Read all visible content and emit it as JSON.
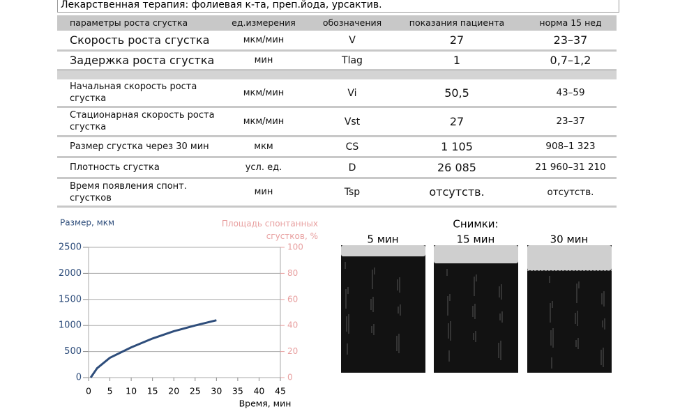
{
  "header": {
    "text": "Лекарственная терапия: фолиевая к-та, преп.йода, урсактив."
  },
  "table": {
    "columns": [
      "параметры роста сгустка",
      "ед.измерения",
      "обозначения",
      "показания пациента",
      "норма 15 нед"
    ],
    "rows": [
      [
        "Скорость роста сгустка",
        "мкм/мин",
        "V",
        "27",
        "23–37"
      ],
      [
        "Задержка роста сгустка",
        "мин",
        "Tlag",
        "1",
        "0,7–1,2"
      ],
      [
        "Начальная скорость роста сгустка",
        "мкм/мин",
        "Vi",
        "50,5",
        "43–59"
      ],
      [
        "Стационарная скорость роста сгустка",
        "мкм/мин",
        "Vst",
        "27",
        "23–37"
      ],
      [
        "Размер сгустка через 30 мин",
        "мкм",
        "CS",
        "1 105",
        "908–1 323"
      ],
      [
        "Плотность сгустка",
        "усл. ед.",
        "D",
        "26 085",
        "21 960–31 210"
      ],
      [
        "Время появления спонт. сгустков",
        "мин",
        "Tsp",
        "отсутств.",
        "отсутств."
      ]
    ]
  },
  "chart": {
    "type": "line",
    "ylabel": "Размер, мкм",
    "y2label": "Площадь спонтанных сгустков, %",
    "xlabel": "Время, мин",
    "x": [
      0.5,
      2,
      5,
      10,
      15,
      20,
      25,
      30
    ],
    "series": [
      {
        "color": "#2e4d7b",
        "values": [
          0,
          180,
          380,
          580,
          750,
          890,
          1000,
          1100
        ]
      }
    ],
    "xlim": [
      0,
      45
    ],
    "xticks": [
      0,
      5,
      10,
      15,
      20,
      25,
      30,
      35,
      40,
      45
    ],
    "ylim": [
      0,
      2500
    ],
    "yticks": [
      0,
      500,
      1000,
      1500,
      2000,
      2500
    ],
    "y2lim": [
      0,
      100
    ],
    "y2ticks": [
      0,
      20,
      40,
      60,
      80,
      100
    ],
    "y2color": "#e8a0a0",
    "grid": true
  },
  "images": {
    "title": "Снимки:",
    "labels": [
      "5 мин",
      "15 мин",
      "30 мин"
    ]
  }
}
